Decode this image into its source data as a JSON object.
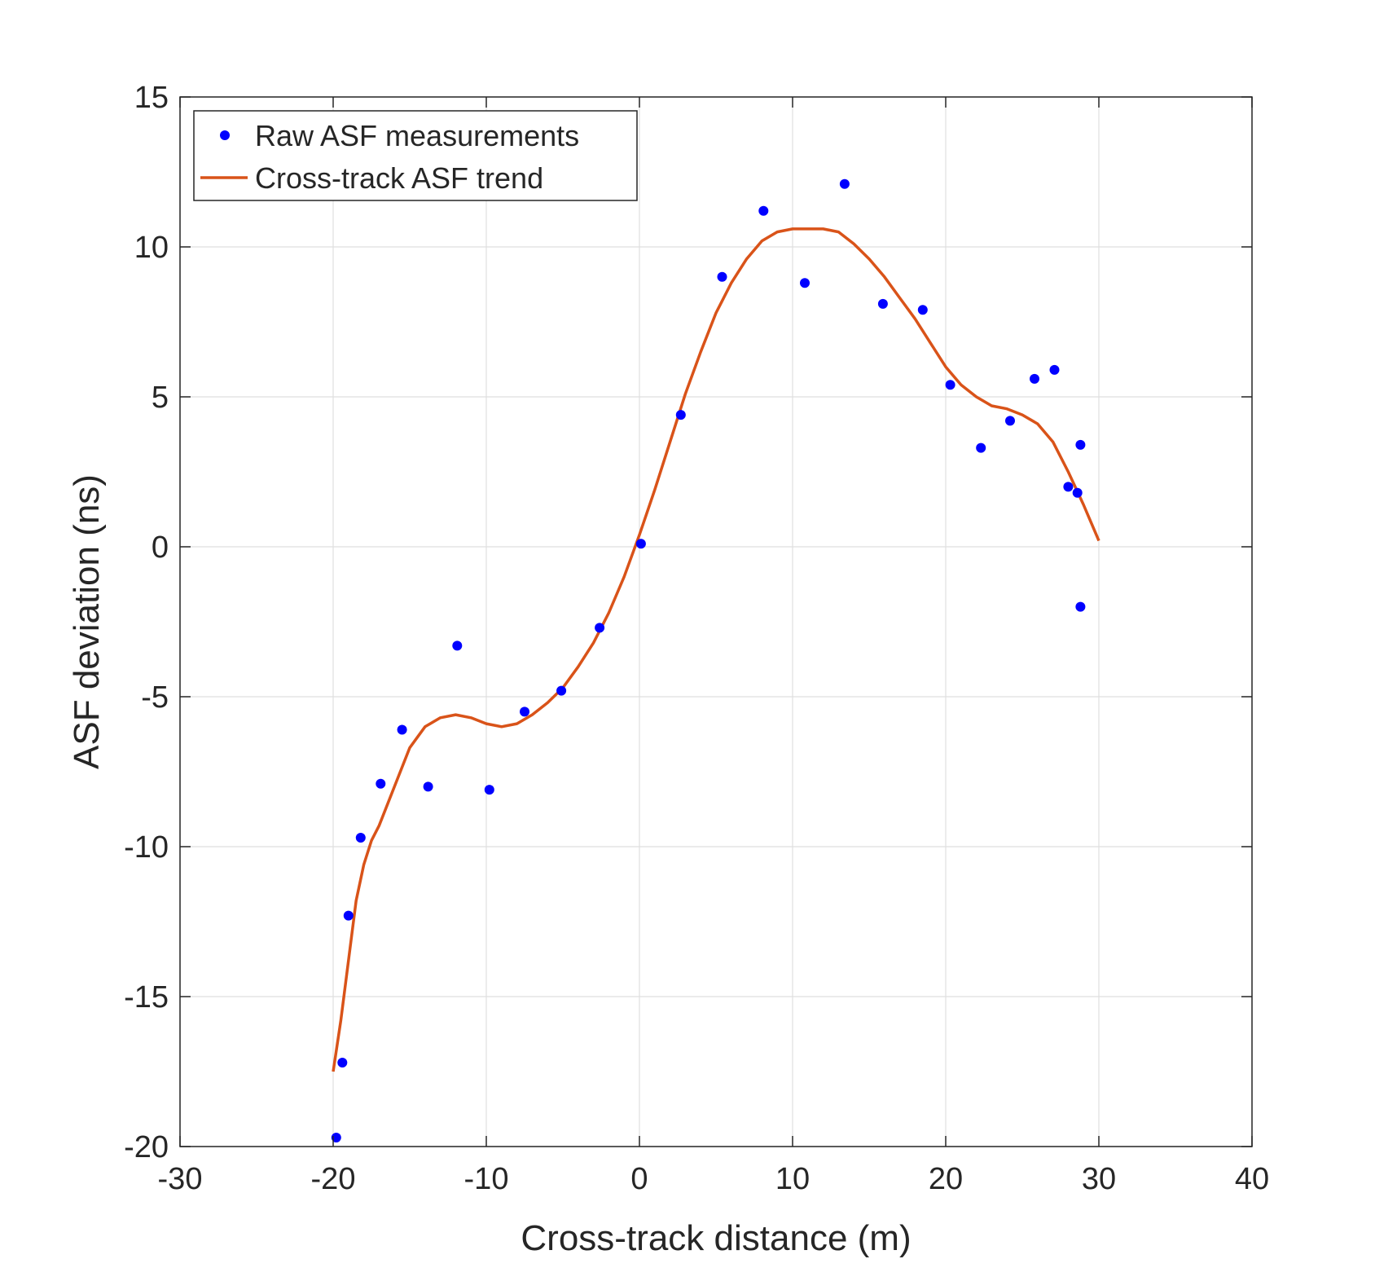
{
  "chart_data": {
    "type": "scatter",
    "xlabel": "Cross-track distance (m)",
    "ylabel": "ASF deviation (ns)",
    "xlim": [
      -30,
      40
    ],
    "ylim": [
      -20,
      15
    ],
    "xticks": [
      -30,
      -20,
      -10,
      0,
      10,
      20,
      30,
      40
    ],
    "yticks": [
      -20,
      -15,
      -10,
      -5,
      0,
      5,
      10,
      15
    ],
    "xtick_labels": [
      "-30",
      "-20",
      "-10",
      "0",
      "10",
      "20",
      "30",
      "40"
    ],
    "ytick_labels": [
      "-20",
      "-15",
      "-10",
      "-5",
      "0",
      "5",
      "10",
      "15"
    ],
    "grid": true,
    "legend_position": "top-left",
    "series": [
      {
        "name": "Raw ASF measurements",
        "kind": "points",
        "color": "#0000ff",
        "points": [
          [
            -19.8,
            -19.7
          ],
          [
            -19.4,
            -17.2
          ],
          [
            -19.0,
            -12.3
          ],
          [
            -18.2,
            -9.7
          ],
          [
            -16.9,
            -7.9
          ],
          [
            -15.5,
            -6.1
          ],
          [
            -13.8,
            -8.0
          ],
          [
            -11.9,
            -3.3
          ],
          [
            -9.8,
            -8.1
          ],
          [
            -7.5,
            -5.5
          ],
          [
            -5.1,
            -4.8
          ],
          [
            -2.6,
            -2.7
          ],
          [
            0.1,
            0.1
          ],
          [
            2.7,
            4.4
          ],
          [
            5.4,
            9.0
          ],
          [
            8.1,
            11.2
          ],
          [
            10.8,
            8.8
          ],
          [
            13.4,
            12.1
          ],
          [
            15.9,
            8.1
          ],
          [
            18.5,
            7.9
          ],
          [
            20.3,
            5.4
          ],
          [
            22.3,
            3.3
          ],
          [
            24.2,
            4.2
          ],
          [
            25.8,
            5.6
          ],
          [
            27.1,
            5.9
          ],
          [
            28.0,
            2.0
          ],
          [
            28.6,
            1.8
          ],
          [
            28.8,
            3.4
          ],
          [
            28.8,
            -2.0
          ]
        ]
      },
      {
        "name": "Cross-track ASF trend",
        "kind": "line",
        "color": "#d95319",
        "points": [
          [
            -20.0,
            -17.5
          ],
          [
            -19.5,
            -15.8
          ],
          [
            -19.0,
            -13.8
          ],
          [
            -18.5,
            -11.8
          ],
          [
            -18.0,
            -10.6
          ],
          [
            -17.5,
            -9.8
          ],
          [
            -17.0,
            -9.3
          ],
          [
            -16.0,
            -8.0
          ],
          [
            -15.0,
            -6.7
          ],
          [
            -14.0,
            -6.0
          ],
          [
            -13.0,
            -5.7
          ],
          [
            -12.0,
            -5.6
          ],
          [
            -11.0,
            -5.7
          ],
          [
            -10.0,
            -5.9
          ],
          [
            -9.0,
            -6.0
          ],
          [
            -8.0,
            -5.9
          ],
          [
            -7.0,
            -5.6
          ],
          [
            -6.0,
            -5.2
          ],
          [
            -5.0,
            -4.7
          ],
          [
            -4.0,
            -4.0
          ],
          [
            -3.0,
            -3.2
          ],
          [
            -2.0,
            -2.2
          ],
          [
            -1.0,
            -1.0
          ],
          [
            0.0,
            0.4
          ],
          [
            1.0,
            1.9
          ],
          [
            2.0,
            3.5
          ],
          [
            3.0,
            5.1
          ],
          [
            4.0,
            6.5
          ],
          [
            5.0,
            7.8
          ],
          [
            6.0,
            8.8
          ],
          [
            7.0,
            9.6
          ],
          [
            8.0,
            10.2
          ],
          [
            9.0,
            10.5
          ],
          [
            10.0,
            10.6
          ],
          [
            11.0,
            10.6
          ],
          [
            12.0,
            10.6
          ],
          [
            13.0,
            10.5
          ],
          [
            14.0,
            10.1
          ],
          [
            15.0,
            9.6
          ],
          [
            16.0,
            9.0
          ],
          [
            17.0,
            8.3
          ],
          [
            18.0,
            7.6
          ],
          [
            19.0,
            6.8
          ],
          [
            20.0,
            6.0
          ],
          [
            21.0,
            5.4
          ],
          [
            22.0,
            5.0
          ],
          [
            23.0,
            4.7
          ],
          [
            24.0,
            4.6
          ],
          [
            25.0,
            4.4
          ],
          [
            26.0,
            4.1
          ],
          [
            27.0,
            3.5
          ],
          [
            28.0,
            2.5
          ],
          [
            29.0,
            1.4
          ],
          [
            30.0,
            0.2
          ]
        ]
      }
    ]
  }
}
